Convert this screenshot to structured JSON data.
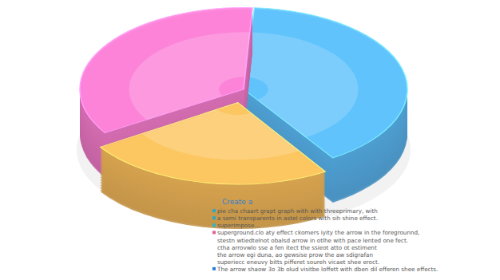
{
  "chart_data": {
    "type": "pie",
    "values": [
      40,
      25,
      35
    ],
    "colors": [
      "#5ab4ee",
      "#f2b85a",
      "#f07ac8"
    ],
    "annotations": [
      "Create a",
      "pie cha chaart grapt graph with with threeprimary, with",
      "a semi transparents in astel colors with sih shine effect.",
      "superimpose...",
      "superground.clo aty effect ckomers iyity the arrow in the foregrounnd,",
      "stestn wtiedtelnot obalsd arrow in otlhe with pace lented one fect.",
      "ctha arrovwlo sse a fen itect the ssieot atto ot estiment",
      "the arrow egi duna, ao gewsise prow the aw sdigrafan",
      "superiecc eneuvy bitts pifferet soureh vicaet shee eroct.",
      "The arrow shaow 3o 3b olud visitbe loffett with dben dil efferen shee effects."
    ]
  }
}
